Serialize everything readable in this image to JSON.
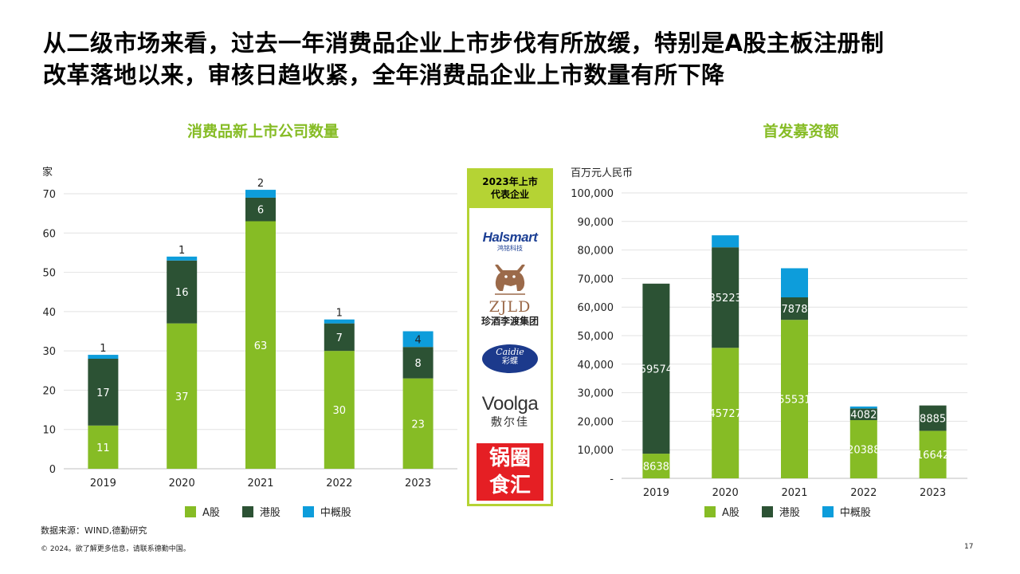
{
  "headline": {
    "line1": "从二级市场来看，过去一年消费品企业上市步伐有所放缓，特别是A股主板注册制",
    "line2": "改革落地以来，审核日趋收紧，全年消费品企业上市数量有所下降"
  },
  "panel": {
    "title_line1": "2023年上市",
    "title_line2": "代表企业",
    "logos": [
      {
        "name": "Halsmart",
        "sub": "鸿铭科技",
        "icon": "halsmart-logo"
      },
      {
        "name": "ZJLD",
        "sub": "珍酒李渡集团",
        "icon": "bull-logo"
      },
      {
        "name": "Caidie",
        "sub": "彩蝶",
        "icon": "caidie-logo"
      },
      {
        "name": "Voolga",
        "sub": "敷尔佳",
        "icon": "voolga-logo"
      },
      {
        "name_line1": "锅圈",
        "name_line2": "食汇",
        "icon": "guoquan-logo"
      }
    ]
  },
  "legend": [
    "A股",
    "港股",
    "中概股"
  ],
  "colors": {
    "a_share": "#86bc25",
    "hk": "#2c5234",
    "china_concept": "#0d9ddb",
    "accent": "#86bc25"
  },
  "chart_data": [
    {
      "type": "bar",
      "stacked": true,
      "title": "消费品新上市公司数量",
      "ylabel": "家",
      "ylim": [
        0,
        70
      ],
      "yticks": [
        0,
        10,
        20,
        30,
        40,
        50,
        60,
        70
      ],
      "categories": [
        "2019",
        "2020",
        "2021",
        "2022",
        "2023"
      ],
      "series": [
        {
          "name": "A股",
          "values": [
            11,
            37,
            63,
            30,
            23
          ]
        },
        {
          "name": "港股",
          "values": [
            17,
            16,
            6,
            7,
            8
          ]
        },
        {
          "name": "中概股",
          "values": [
            1,
            1,
            2,
            1,
            4
          ]
        }
      ],
      "grid": true,
      "legend_position": "bottom"
    },
    {
      "type": "bar",
      "stacked": true,
      "title": "首发募资额",
      "ylabel": "百万元人民币",
      "ylim": [
        0,
        100000
      ],
      "yticks": [
        0,
        10000,
        20000,
        30000,
        40000,
        50000,
        60000,
        70000,
        80000,
        90000,
        100000
      ],
      "ytick_labels": [
        "-",
        "10,000",
        "20,000",
        "30,000",
        "40,000",
        "50,000",
        "60,000",
        "70,000",
        "80,000",
        "90,000",
        "100,000"
      ],
      "categories": [
        "2019",
        "2020",
        "2021",
        "2022",
        "2023"
      ],
      "series": [
        {
          "name": "A股",
          "values": [
            8638,
            45727,
            55531,
            20388,
            16642
          ]
        },
        {
          "name": "港股",
          "values": [
            59574,
            35223,
            7878,
            4082,
            8885
          ]
        },
        {
          "name": "中概股",
          "values": [
            null,
            4200,
            10200,
            700,
            null
          ]
        }
      ],
      "grid": true,
      "legend_position": "bottom"
    }
  ],
  "footer": {
    "source": "数据来源：WIND,德勤研究",
    "copyright": "© 2024。欲了解更多信息，请联系德勤中国。",
    "page": "17"
  }
}
